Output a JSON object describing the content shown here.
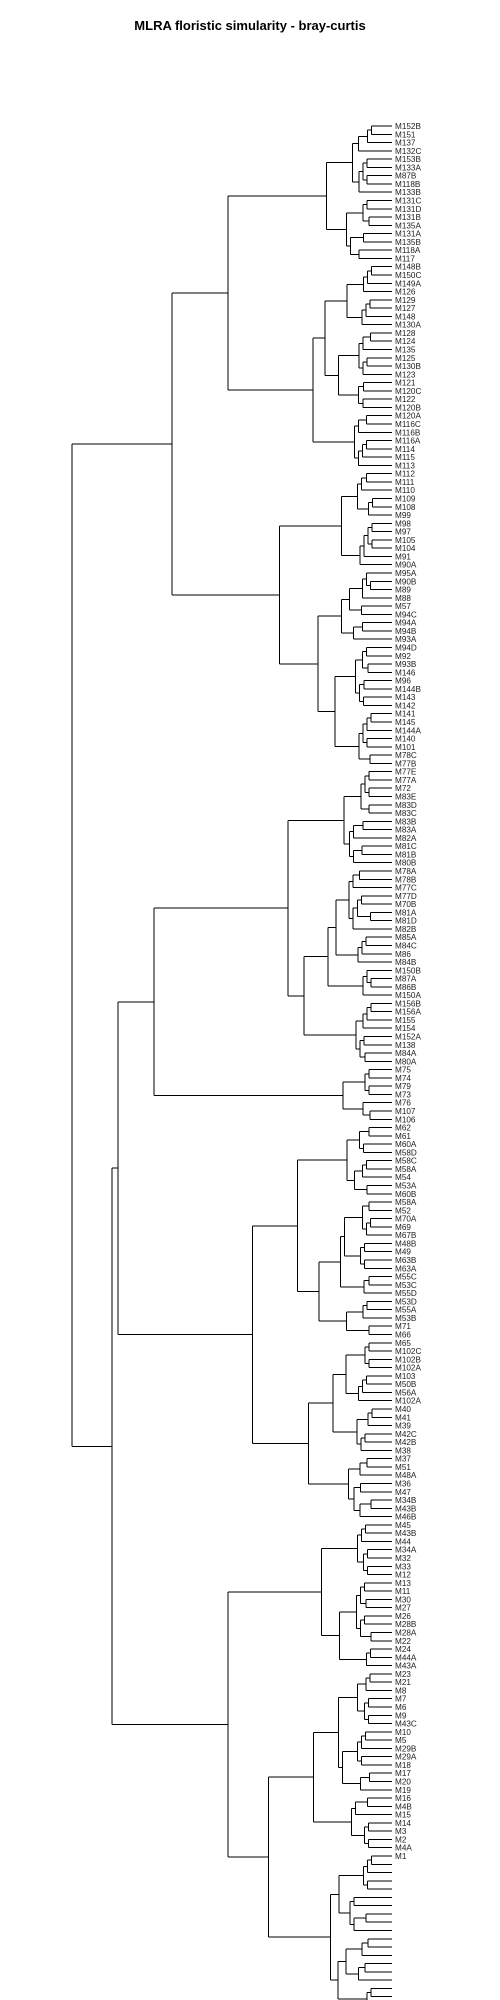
{
  "title": "MLRA floristic simularity - bray-curtis",
  "chart_data": {
    "type": "dendrogram",
    "method": "bray-curtis",
    "leaves_top_to_bottom": [
      "M152B",
      "M151",
      "M137",
      "M132C",
      "M153B",
      "M133A",
      "M87B",
      "M118B",
      "M133B",
      "M131C",
      "M131D",
      "M131B",
      "M135A",
      "M131A",
      "M135B",
      "M118A",
      "M117",
      "M148B",
      "M150C",
      "M149A",
      "M126",
      "M129",
      "M127",
      "M148",
      "M130A",
      "M128",
      "M124",
      "M135",
      "M125",
      "M130B",
      "M123",
      "M121",
      "M120C",
      "M122",
      "M120B",
      "M120A",
      "M116C",
      "M116B",
      "M116A",
      "M114",
      "M115",
      "M113",
      "M112",
      "M111",
      "M110",
      "M109",
      "M108",
      "M99",
      "M98",
      "M97",
      "M105",
      "M104",
      "M91",
      "M90A",
      "M95A",
      "M90B",
      "M89",
      "M88",
      "M57",
      "M94C",
      "M94A",
      "M94B",
      "M93A",
      "M94D",
      "M92",
      "M93B",
      "M146",
      "M96",
      "M144B",
      "M143",
      "M142",
      "M141",
      "M145",
      "M144A",
      "M140",
      "M101",
      "M78C",
      "M77B",
      "M77E",
      "M77A",
      "M72",
      "M83E",
      "M83D",
      "M83C",
      "M83B",
      "M83A",
      "M82A",
      "M81C",
      "M81B",
      "M80B",
      "M78A",
      "M78B",
      "M77C",
      "M77D",
      "M70B",
      "M81A",
      "M81D",
      "M82B",
      "M85A",
      "M84C",
      "M86",
      "M84B",
      "M150B",
      "M87A",
      "M86B",
      "M150A",
      "M156B",
      "M156A",
      "M155",
      "M154",
      "M152A",
      "M138",
      "M84A",
      "M80A",
      "M75",
      "M74",
      "M79",
      "M73",
      "M76",
      "M107",
      "M106",
      "M62",
      "M61",
      "M60A",
      "M58D",
      "M58C",
      "M58A",
      "M54",
      "M53A",
      "M60B",
      "M58A",
      "M52",
      "M70A",
      "M69",
      "M67B",
      "M48B",
      "M49",
      "M63B",
      "M63A",
      "M55C",
      "M53C",
      "M55D",
      "M53D",
      "M55A",
      "M53B",
      "M71",
      "M66",
      "M65",
      "M102C",
      "M102B",
      "M102A",
      "M103",
      "M50B",
      "M56A",
      "M102A",
      "M40",
      "M41",
      "M39",
      "M42C",
      "M42B",
      "M38",
      "M37",
      "M51",
      "M48A",
      "M36",
      "M47",
      "M34B",
      "M43B",
      "M46B",
      "M45",
      "M43B",
      "M44",
      "M34A",
      "M32",
      "M33",
      "M12",
      "M13",
      "M11",
      "M30",
      "M27",
      "M26",
      "M28B",
      "M28A",
      "M22",
      "M24",
      "M44A",
      "M43A",
      "M23",
      "M21",
      "M8",
      "M7",
      "M6",
      "M9",
      "M43C",
      "M10",
      "M5",
      "M29B",
      "M29A",
      "M18",
      "M17",
      "M20",
      "M19",
      "M16",
      "M4B",
      "M15",
      "M14",
      "M3",
      "M2",
      "M4A",
      "M1"
    ]
  }
}
